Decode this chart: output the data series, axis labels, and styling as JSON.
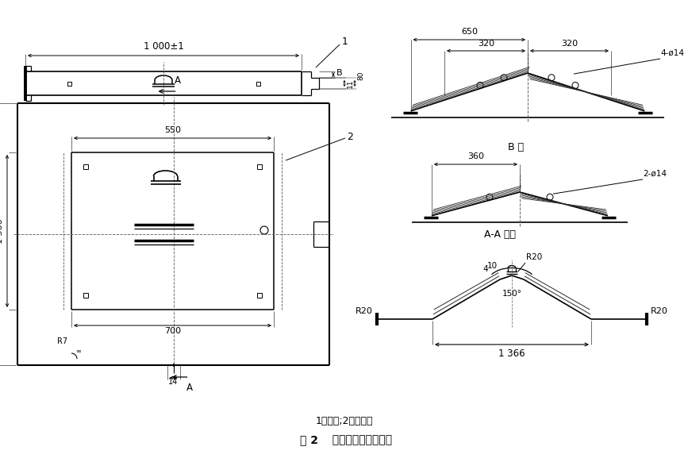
{
  "bg_color": "#ffffff",
  "line_color": "#000000",
  "caption": "1－罩壳;2－观察盖",
  "title_pre": "图 2",
  "title_post": "  新型盖板结构示意图",
  "fig_width": 8.67,
  "fig_height": 5.82,
  "dpi": 100
}
